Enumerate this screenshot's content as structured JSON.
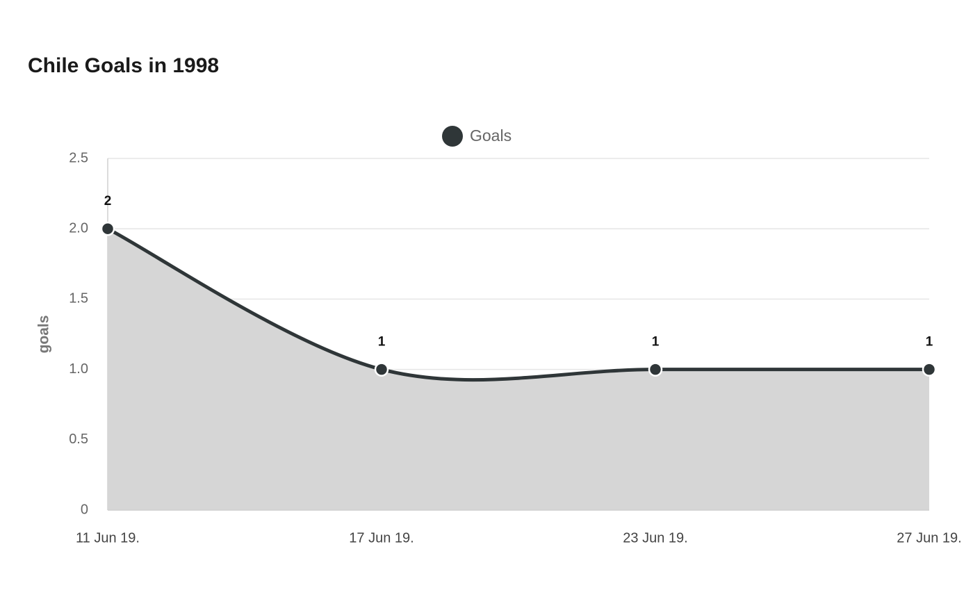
{
  "chart_data": {
    "type": "area",
    "title": "Chile Goals in 1998",
    "y_label": "goals",
    "categories": [
      "11 Jun 19.",
      "17 Jun 19.",
      "23 Jun 19.",
      "27 Jun 19."
    ],
    "series": [
      {
        "name": "Goals",
        "color": "#2f3638",
        "fill": "#d6d6d6",
        "values": [
          2,
          1,
          1,
          1
        ]
      }
    ],
    "ylim": [
      0,
      2.5
    ],
    "yticks": [
      0,
      0.5,
      {
        "value": 1,
        "label": "1.0"
      },
      1.5,
      {
        "value": 2,
        "label": "2.0"
      },
      2.5
    ],
    "grid": true,
    "legend": "top",
    "smooth": true
  }
}
